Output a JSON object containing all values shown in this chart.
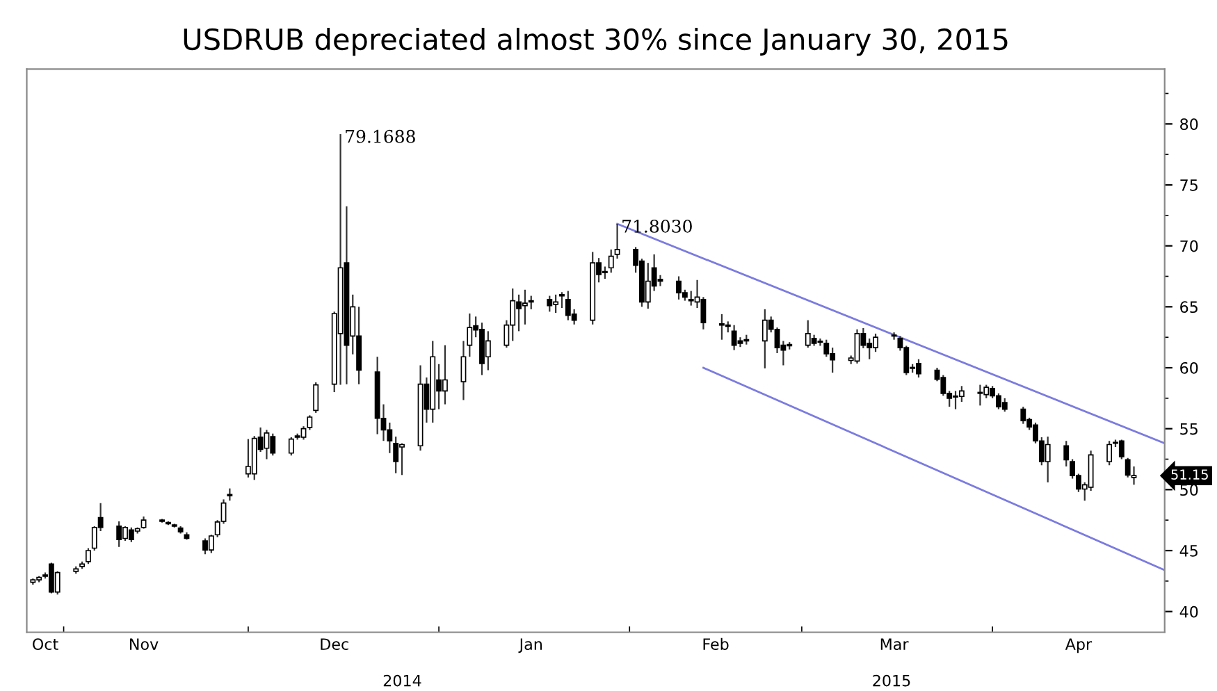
{
  "chart_data": {
    "type": "candlestick",
    "title": "USDRUB depreciated almost 30% since January 30, 2015",
    "x": [
      "2014-10-27",
      "2014-10-28",
      "2014-10-29",
      "2014-10-30",
      "2014-10-31",
      "2014-11-03",
      "2014-11-04",
      "2014-11-05",
      "2014-11-06",
      "2014-11-07",
      "2014-11-10",
      "2014-11-11",
      "2014-11-12",
      "2014-11-13",
      "2014-11-14",
      "2014-11-17",
      "2014-11-18",
      "2014-11-19",
      "2014-11-20",
      "2014-11-21",
      "2014-11-24",
      "2014-11-25",
      "2014-11-26",
      "2014-11-27",
      "2014-11-28",
      "2014-12-01",
      "2014-12-02",
      "2014-12-03",
      "2014-12-04",
      "2014-12-05",
      "2014-12-08",
      "2014-12-09",
      "2014-12-10",
      "2014-12-11",
      "2014-12-12",
      "2014-12-15",
      "2014-12-16",
      "2014-12-17",
      "2014-12-18",
      "2014-12-19",
      "2014-12-22",
      "2014-12-23",
      "2014-12-24",
      "2014-12-25",
      "2014-12-26",
      "2014-12-29",
      "2014-12-30",
      "2014-12-31",
      "2015-01-01",
      "2015-01-02",
      "2015-01-05",
      "2015-01-06",
      "2015-01-07",
      "2015-01-08",
      "2015-01-09",
      "2015-01-12",
      "2015-01-13",
      "2015-01-14",
      "2015-01-15",
      "2015-01-16",
      "2015-01-19",
      "2015-01-20",
      "2015-01-21",
      "2015-01-22",
      "2015-01-23",
      "2015-01-26",
      "2015-01-27",
      "2015-01-28",
      "2015-01-29",
      "2015-01-30",
      "2015-02-02",
      "2015-02-03",
      "2015-02-04",
      "2015-02-05",
      "2015-02-06",
      "2015-02-09",
      "2015-02-10",
      "2015-02-11",
      "2015-02-12",
      "2015-02-13",
      "2015-02-16",
      "2015-02-17",
      "2015-02-18",
      "2015-02-19",
      "2015-02-20",
      "2015-02-23",
      "2015-02-24",
      "2015-02-25",
      "2015-02-26",
      "2015-02-27",
      "2015-03-02",
      "2015-03-03",
      "2015-03-04",
      "2015-03-05",
      "2015-03-06",
      "2015-03-09",
      "2015-03-10",
      "2015-03-11",
      "2015-03-12",
      "2015-03-13",
      "2015-03-16",
      "2015-03-17",
      "2015-03-18",
      "2015-03-19",
      "2015-03-20",
      "2015-03-23",
      "2015-03-24",
      "2015-03-25",
      "2015-03-26",
      "2015-03-27",
      "2015-03-30",
      "2015-03-31",
      "2015-04-01",
      "2015-04-02",
      "2015-04-03",
      "2015-04-06",
      "2015-04-07",
      "2015-04-08",
      "2015-04-09",
      "2015-04-10",
      "2015-04-13",
      "2015-04-14",
      "2015-04-15",
      "2015-04-16",
      "2015-04-17",
      "2015-04-20",
      "2015-04-21",
      "2015-04-22",
      "2015-04-23",
      "2015-04-24"
    ],
    "ohlc": [
      [
        42.4,
        42.7,
        42.2,
        42.6
      ],
      [
        42.6,
        42.9,
        42.4,
        42.8
      ],
      [
        42.9,
        43.2,
        42.7,
        43.0
      ],
      [
        43.9,
        44.0,
        41.5,
        41.6
      ],
      [
        41.6,
        43.3,
        41.4,
        43.2
      ],
      [
        43.3,
        43.7,
        43.1,
        43.5
      ],
      [
        43.7,
        44.1,
        43.5,
        43.9
      ],
      [
        44.1,
        45.2,
        43.9,
        45.0
      ],
      [
        45.2,
        47.0,
        45.0,
        46.9
      ],
      [
        47.7,
        48.9,
        46.6,
        46.9
      ],
      [
        47.0,
        47.4,
        45.3,
        45.9
      ],
      [
        46.0,
        47.0,
        45.8,
        46.9
      ],
      [
        46.7,
        46.9,
        45.7,
        45.9
      ],
      [
        46.6,
        46.9,
        46.4,
        46.8
      ],
      [
        46.9,
        47.8,
        46.8,
        47.5
      ],
      [
        47.5,
        47.6,
        47.3,
        47.4
      ],
      [
        47.3,
        47.4,
        47.1,
        47.2
      ],
      [
        47.1,
        47.2,
        46.9,
        47.0
      ],
      [
        46.85,
        47.0,
        46.4,
        46.55
      ],
      [
        46.3,
        46.5,
        45.9,
        46.0
      ],
      [
        45.8,
        46.0,
        44.7,
        45.05
      ],
      [
        45.05,
        46.3,
        44.8,
        46.2
      ],
      [
        46.3,
        47.5,
        46.1,
        47.35
      ],
      [
        47.4,
        49.2,
        47.2,
        48.9
      ],
      [
        49.5,
        50.1,
        49.1,
        49.6
      ],
      [
        51.3,
        54.15,
        51.0,
        51.9
      ],
      [
        51.3,
        54.4,
        50.8,
        54.2
      ],
      [
        54.3,
        55.1,
        53.1,
        53.3
      ],
      [
        53.4,
        54.9,
        52.5,
        54.65
      ],
      [
        54.35,
        54.6,
        52.8,
        53.0
      ],
      [
        53.0,
        54.3,
        52.8,
        54.15
      ],
      [
        54.3,
        54.6,
        54.1,
        54.4
      ],
      [
        54.3,
        55.2,
        54.1,
        55.0
      ],
      [
        55.1,
        56.1,
        54.9,
        55.95
      ],
      [
        56.5,
        58.8,
        56.3,
        58.6
      ],
      [
        58.65,
        64.6,
        58.0,
        64.45
      ],
      [
        62.8,
        79.1688,
        58.6,
        68.2
      ],
      [
        68.6,
        73.25,
        58.65,
        61.85
      ],
      [
        62.6,
        66.0,
        61.1,
        65.0
      ],
      [
        62.6,
        65.0,
        58.65,
        59.8
      ],
      [
        59.65,
        60.9,
        54.55,
        55.85
      ],
      [
        55.85,
        57.0,
        54.0,
        54.9
      ],
      [
        54.9,
        55.5,
        53.0,
        54.0
      ],
      [
        53.8,
        54.35,
        51.35,
        52.3
      ],
      [
        53.5,
        53.8,
        51.2,
        53.7
      ],
      [
        53.6,
        60.2,
        53.2,
        58.65
      ],
      [
        58.65,
        59.2,
        55.5,
        56.6
      ],
      [
        56.6,
        62.2,
        55.5,
        60.9
      ],
      [
        59.0,
        60.3,
        56.6,
        58.1
      ],
      [
        58.1,
        61.85,
        57.0,
        59.0
      ],
      [
        58.85,
        62.2,
        57.35,
        60.9
      ],
      [
        61.85,
        64.45,
        60.9,
        63.3
      ],
      [
        63.45,
        64.2,
        62.5,
        63.1
      ],
      [
        63.15,
        63.7,
        59.4,
        60.35
      ],
      [
        60.9,
        63.0,
        59.8,
        62.2
      ],
      [
        61.85,
        63.9,
        61.65,
        63.5
      ],
      [
        63.5,
        66.5,
        62.2,
        65.5
      ],
      [
        65.4,
        66.0,
        63.0,
        64.85
      ],
      [
        65.1,
        66.4,
        63.55,
        65.3
      ],
      [
        65.5,
        65.9,
        64.8,
        65.4
      ],
      [
        65.6,
        65.9,
        64.6,
        65.1
      ],
      [
        65.2,
        66.0,
        64.5,
        65.4
      ],
      [
        66.0,
        66.2,
        64.9,
        65.9
      ],
      [
        65.6,
        66.3,
        63.9,
        64.3
      ],
      [
        64.4,
        64.8,
        63.55,
        63.9
      ],
      [
        63.9,
        69.5,
        63.55,
        68.6
      ],
      [
        68.6,
        69.0,
        67.0,
        67.65
      ],
      [
        67.9,
        68.3,
        67.3,
        67.8
      ],
      [
        68.2,
        69.7,
        67.8,
        69.15
      ],
      [
        69.3,
        71.803,
        68.95,
        69.7
      ],
      [
        69.7,
        69.9,
        67.8,
        68.4
      ],
      [
        68.75,
        68.95,
        65.0,
        65.4
      ],
      [
        65.4,
        68.6,
        64.85,
        67.1
      ],
      [
        68.2,
        69.3,
        66.3,
        66.7
      ],
      [
        67.25,
        67.6,
        66.7,
        67.1
      ],
      [
        67.1,
        67.5,
        65.6,
        66.15
      ],
      [
        66.15,
        66.4,
        65.5,
        65.8
      ],
      [
        65.6,
        66.3,
        65.1,
        65.5
      ],
      [
        65.4,
        67.2,
        64.9,
        65.8
      ],
      [
        65.6,
        65.8,
        63.15,
        63.7
      ],
      [
        63.6,
        64.4,
        62.3,
        63.5
      ],
      [
        63.5,
        63.8,
        62.9,
        63.4
      ],
      [
        63.0,
        63.5,
        61.45,
        61.85
      ],
      [
        62.2,
        62.5,
        61.7,
        62.0
      ],
      [
        62.2,
        62.7,
        61.9,
        62.3
      ],
      [
        62.2,
        64.8,
        59.95,
        63.9
      ],
      [
        63.9,
        64.2,
        62.9,
        63.15
      ],
      [
        63.15,
        63.3,
        61.2,
        61.65
      ],
      [
        61.85,
        62.2,
        60.2,
        61.45
      ],
      [
        61.8,
        62.1,
        61.5,
        61.9
      ],
      [
        61.85,
        63.9,
        61.65,
        62.8
      ],
      [
        62.4,
        62.7,
        61.8,
        62.0
      ],
      [
        62.15,
        62.4,
        61.8,
        62.1
      ],
      [
        62.0,
        62.3,
        60.9,
        61.15
      ],
      [
        61.15,
        61.65,
        59.6,
        60.65
      ],
      [
        60.6,
        61.0,
        60.3,
        60.8
      ],
      [
        60.55,
        63.15,
        60.35,
        62.8
      ],
      [
        62.8,
        63.25,
        61.6,
        61.85
      ],
      [
        62.0,
        62.4,
        60.7,
        61.65
      ],
      [
        61.65,
        62.8,
        61.3,
        62.5
      ],
      [
        62.65,
        62.9,
        62.3,
        62.6
      ],
      [
        62.4,
        62.6,
        61.4,
        61.65
      ],
      [
        61.65,
        61.8,
        59.4,
        59.6
      ],
      [
        60.0,
        60.3,
        59.6,
        59.95
      ],
      [
        60.35,
        60.7,
        59.2,
        59.5
      ],
      [
        59.8,
        60.0,
        58.9,
        59.05
      ],
      [
        59.2,
        59.4,
        57.7,
        57.9
      ],
      [
        57.9,
        58.1,
        56.8,
        57.5
      ],
      [
        57.65,
        58.1,
        56.6,
        57.6
      ],
      [
        57.65,
        58.5,
        57.2,
        58.1
      ],
      [
        57.95,
        58.6,
        56.9,
        57.9
      ],
      [
        57.8,
        58.6,
        57.5,
        58.4
      ],
      [
        58.3,
        58.5,
        57.5,
        57.7
      ],
      [
        57.7,
        57.9,
        56.6,
        56.8
      ],
      [
        57.15,
        57.5,
        56.4,
        56.6
      ],
      [
        56.6,
        56.8,
        55.4,
        55.65
      ],
      [
        55.75,
        55.9,
        54.9,
        55.15
      ],
      [
        55.3,
        55.5,
        53.8,
        54.0
      ],
      [
        54.0,
        54.3,
        52.0,
        52.3
      ],
      [
        52.3,
        54.35,
        50.6,
        53.7
      ],
      [
        53.6,
        54.0,
        51.9,
        52.45
      ],
      [
        52.3,
        52.5,
        50.9,
        51.15
      ],
      [
        51.15,
        51.3,
        49.8,
        50.05
      ],
      [
        50.05,
        50.6,
        49.1,
        50.4
      ],
      [
        50.2,
        53.2,
        49.9,
        52.85
      ],
      [
        52.3,
        54.0,
        52.0,
        53.7
      ],
      [
        53.8,
        54.1,
        53.5,
        53.85
      ],
      [
        54.0,
        54.1,
        52.5,
        52.7
      ],
      [
        52.45,
        52.6,
        51.0,
        51.2
      ],
      [
        51.0,
        51.9,
        50.4,
        51.15
      ]
    ],
    "series": [
      {
        "type": "line",
        "color": "#7b7be0",
        "x": [
          "2015-01-30",
          "2015-04-29"
        ],
        "values": [
          71.8,
          53.8
        ]
      },
      {
        "type": "line",
        "color": "#7b7be0",
        "x": [
          "2015-02-13",
          "2015-04-29"
        ],
        "values": [
          60.0,
          43.4
        ]
      }
    ],
    "xlim": [
      "2014-10-26",
      "2015-04-29"
    ],
    "xticks": [
      {
        "value": "2014-10-29",
        "label": "Oct"
      },
      {
        "value": "2014-11-01",
        "label": null
      },
      {
        "value": "2014-11-14",
        "label": "Nov"
      },
      {
        "value": "2014-12-01",
        "label": null
      },
      {
        "value": "2014-12-15",
        "label": "Dec"
      },
      {
        "value": "2015-01-01",
        "label": null
      },
      {
        "value": "2015-01-16",
        "label": "Jan"
      },
      {
        "value": "2015-02-01",
        "label": null
      },
      {
        "value": "2015-02-15",
        "label": "Feb"
      },
      {
        "value": "2015-03-01",
        "label": null
      },
      {
        "value": "2015-03-16",
        "label": "Mar"
      },
      {
        "value": "2015-04-01",
        "label": null
      },
      {
        "value": "2015-04-15",
        "label": "Apr"
      }
    ],
    "ylim": [
      38.3,
      84.5
    ],
    "yticks": [
      40,
      {
        "value": 42.5,
        "label": null
      },
      45,
      {
        "value": 47.5,
        "label": null
      },
      50,
      {
        "value": 52.5,
        "label": null
      },
      55,
      {
        "value": 57.5,
        "label": null
      },
      60,
      {
        "value": 62.5,
        "label": null
      },
      65,
      {
        "value": 67.5,
        "label": null
      },
      70,
      {
        "value": 72.5,
        "label": null
      },
      75,
      {
        "value": 77.5,
        "label": null
      },
      80,
      {
        "value": 82.5,
        "label": null
      }
    ],
    "annotations": [
      {
        "text": "79.1688",
        "x": "2014-12-16",
        "y": 79.1688
      },
      {
        "text": "71.8030",
        "x": "2015-01-30",
        "y": 71.803
      },
      "51.15",
      "2014",
      "2015"
    ],
    "grid": false,
    "legend": false
  }
}
